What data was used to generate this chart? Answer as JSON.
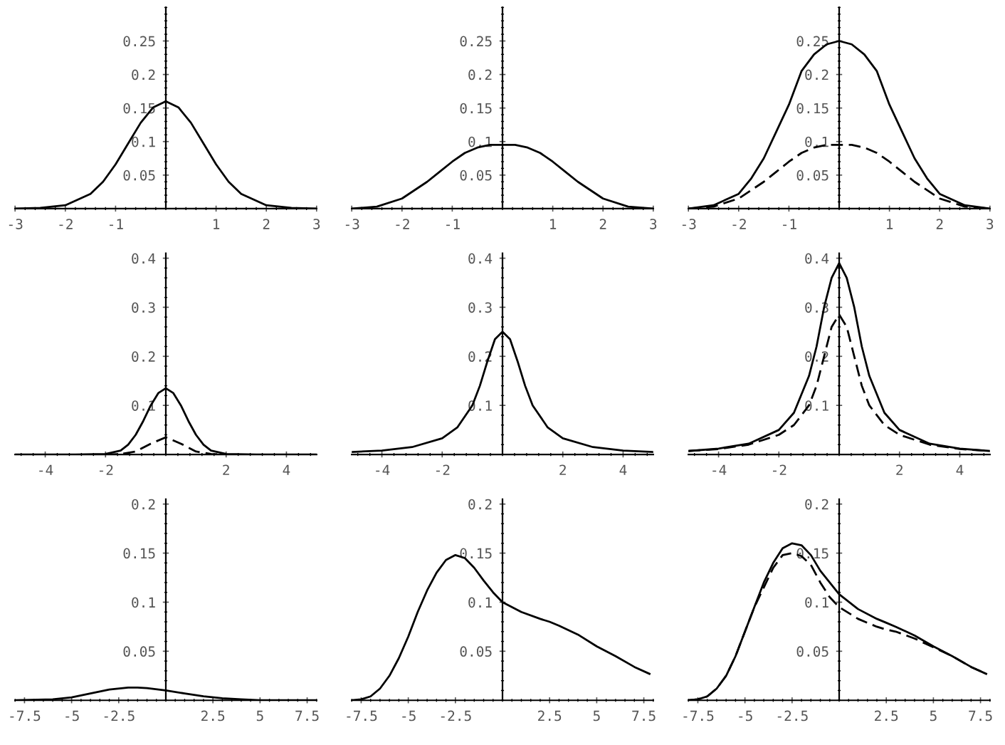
{
  "chart_data": [
    {
      "type": "line",
      "xlim": [
        -3,
        3
      ],
      "ylim": [
        0,
        0.3
      ],
      "xticks": [
        -3,
        -2,
        -1,
        1,
        2,
        3
      ],
      "yticks": [
        0.05,
        0.1,
        0.15,
        0.2,
        0.25
      ],
      "series": [
        {
          "color": "#000000",
          "line_style": "solid",
          "x": [
            -3,
            -2.5,
            -2,
            -1.5,
            -1.25,
            -1,
            -0.75,
            -0.5,
            -0.25,
            0,
            0.25,
            0.5,
            0.75,
            1,
            1.25,
            1.5,
            2,
            2.5,
            3
          ],
          "values": [
            0.0,
            0.001,
            0.005,
            0.022,
            0.04,
            0.066,
            0.097,
            0.128,
            0.151,
            0.16,
            0.151,
            0.128,
            0.097,
            0.066,
            0.04,
            0.022,
            0.005,
            0.001,
            0.0
          ]
        }
      ]
    },
    {
      "type": "line",
      "xlim": [
        -3,
        3
      ],
      "ylim": [
        0,
        0.3
      ],
      "xticks": [
        -3,
        -2,
        -1,
        1,
        2,
        3
      ],
      "yticks": [
        0.05,
        0.1,
        0.15,
        0.2,
        0.25
      ],
      "series": [
        {
          "color": "#000000",
          "line_style": "solid",
          "x": [
            -3,
            -2.5,
            -2,
            -1.5,
            -1.25,
            -1,
            -0.75,
            -0.5,
            -0.25,
            0,
            0.25,
            0.5,
            0.75,
            1,
            1.25,
            1.5,
            2,
            2.5,
            3
          ],
          "values": [
            0.0,
            0.003,
            0.015,
            0.04,
            0.055,
            0.07,
            0.083,
            0.091,
            0.095,
            0.095,
            0.095,
            0.091,
            0.083,
            0.07,
            0.055,
            0.04,
            0.015,
            0.003,
            0.0
          ]
        }
      ]
    },
    {
      "type": "line",
      "xlim": [
        -3,
        3
      ],
      "ylim": [
        0,
        0.3
      ],
      "xticks": [
        -3,
        -2,
        -1,
        1,
        2,
        3
      ],
      "yticks": [
        0.05,
        0.1,
        0.15,
        0.2,
        0.25
      ],
      "series": [
        {
          "color": "#000000",
          "line_style": "solid",
          "x": [
            -3,
            -2.5,
            -2,
            -1.75,
            -1.5,
            -1.25,
            -1,
            -0.75,
            -0.5,
            -0.25,
            0,
            0.25,
            0.5,
            0.75,
            1,
            1.25,
            1.5,
            1.75,
            2,
            2.5,
            3
          ],
          "values": [
            0.0,
            0.005,
            0.022,
            0.045,
            0.075,
            0.115,
            0.155,
            0.205,
            0.23,
            0.245,
            0.25,
            0.245,
            0.23,
            0.205,
            0.155,
            0.115,
            0.075,
            0.045,
            0.022,
            0.005,
            0.0
          ]
        },
        {
          "color": "#000000",
          "line_style": "dashed",
          "x": [
            -3,
            -2.5,
            -2,
            -1.5,
            -1.25,
            -1,
            -0.75,
            -0.5,
            -0.25,
            0,
            0.25,
            0.5,
            0.75,
            1,
            1.25,
            1.5,
            2,
            2.5,
            3
          ],
          "values": [
            0.0,
            0.003,
            0.015,
            0.04,
            0.055,
            0.07,
            0.083,
            0.091,
            0.095,
            0.095,
            0.095,
            0.091,
            0.083,
            0.07,
            0.055,
            0.04,
            0.015,
            0.003,
            0.0
          ]
        }
      ]
    },
    {
      "type": "line",
      "xlim": [
        -5,
        5
      ],
      "ylim": [
        0,
        0.41
      ],
      "xticks": [
        -4,
        -2,
        2,
        4
      ],
      "yticks": [
        0.1,
        0.2,
        0.3,
        0.4
      ],
      "series": [
        {
          "color": "#000000",
          "line_style": "solid",
          "x": [
            -5,
            -3,
            -2,
            -1.5,
            -1.25,
            -1,
            -0.75,
            -0.5,
            -0.25,
            0,
            0.25,
            0.5,
            0.75,
            1,
            1.25,
            1.5,
            2,
            3,
            5
          ],
          "values": [
            0.0,
            0.0,
            0.001,
            0.008,
            0.02,
            0.04,
            0.068,
            0.1,
            0.125,
            0.135,
            0.125,
            0.1,
            0.068,
            0.04,
            0.02,
            0.008,
            0.001,
            0.0,
            0.0
          ]
        },
        {
          "color": "#000000",
          "line_style": "dashed",
          "x": [
            -2,
            -1.5,
            -1,
            -0.5,
            0,
            0.5,
            1,
            1.5,
            2
          ],
          "values": [
            0.0,
            0.001,
            0.006,
            0.022,
            0.035,
            0.022,
            0.006,
            0.001,
            0.0
          ]
        }
      ]
    },
    {
      "type": "line",
      "xlim": [
        -5,
        5
      ],
      "ylim": [
        0,
        0.41
      ],
      "xticks": [
        -4,
        -2,
        2,
        4
      ],
      "yticks": [
        0.1,
        0.2,
        0.3,
        0.4
      ],
      "series": [
        {
          "color": "#000000",
          "line_style": "solid",
          "x": [
            -5,
            -4,
            -3,
            -2,
            -1.5,
            -1,
            -0.75,
            -0.5,
            -0.25,
            0,
            0.25,
            0.5,
            0.75,
            1,
            1.5,
            2,
            3,
            4,
            5
          ],
          "values": [
            0.005,
            0.008,
            0.015,
            0.033,
            0.055,
            0.1,
            0.14,
            0.19,
            0.235,
            0.25,
            0.235,
            0.19,
            0.14,
            0.1,
            0.055,
            0.033,
            0.015,
            0.008,
            0.005
          ]
        }
      ]
    },
    {
      "type": "line",
      "xlim": [
        -5,
        5
      ],
      "ylim": [
        0,
        0.41
      ],
      "xticks": [
        -4,
        -2,
        2,
        4
      ],
      "yticks": [
        0.1,
        0.2,
        0.3,
        0.4
      ],
      "series": [
        {
          "color": "#000000",
          "line_style": "solid",
          "x": [
            -5,
            -4,
            -3,
            -2,
            -1.5,
            -1,
            -0.75,
            -0.5,
            -0.25,
            0,
            0.25,
            0.5,
            0.75,
            1,
            1.5,
            2,
            3,
            4,
            5
          ],
          "values": [
            0.007,
            0.012,
            0.022,
            0.05,
            0.085,
            0.16,
            0.22,
            0.3,
            0.36,
            0.39,
            0.36,
            0.3,
            0.22,
            0.16,
            0.085,
            0.05,
            0.022,
            0.012,
            0.007
          ]
        },
        {
          "color": "#000000",
          "line_style": "dashed",
          "x": [
            -5,
            -4,
            -3,
            -2,
            -1.5,
            -1,
            -0.75,
            -0.5,
            -0.25,
            0,
            0.25,
            0.5,
            0.75,
            1,
            1.5,
            2,
            3,
            4,
            5
          ],
          "values": [
            0.007,
            0.011,
            0.02,
            0.04,
            0.06,
            0.1,
            0.14,
            0.2,
            0.26,
            0.285,
            0.26,
            0.2,
            0.14,
            0.1,
            0.06,
            0.04,
            0.02,
            0.011,
            0.007
          ]
        }
      ]
    },
    {
      "type": "line",
      "xlim": [
        -8,
        8
      ],
      "ylim": [
        0,
        0.205
      ],
      "xticks": [
        -7.5,
        -5,
        -2.5,
        2.5,
        5,
        7.5
      ],
      "yticks": [
        0.05,
        0.1,
        0.15,
        0.2
      ],
      "series": [
        {
          "color": "#000000",
          "line_style": "solid",
          "x": [
            -8,
            -6,
            -5,
            -4,
            -3,
            -2,
            -1.5,
            -1,
            0,
            1,
            2,
            3,
            4,
            5,
            8
          ],
          "values": [
            0.0,
            0.001,
            0.003,
            0.007,
            0.011,
            0.013,
            0.013,
            0.0125,
            0.01,
            0.007,
            0.004,
            0.002,
            0.001,
            0.0,
            0.0
          ]
        }
      ]
    },
    {
      "type": "line",
      "xlim": [
        -8,
        8
      ],
      "ylim": [
        0,
        0.205
      ],
      "xticks": [
        -7.5,
        -5,
        -2.5,
        2.5,
        5,
        7.5
      ],
      "yticks": [
        0.05,
        0.1,
        0.15,
        0.2
      ],
      "series": [
        {
          "color": "#000000",
          "line_style": "solid",
          "x": [
            -8,
            -7.5,
            -7,
            -6.5,
            -6,
            -5.5,
            -5,
            -4.5,
            -4,
            -3.5,
            -3,
            -2.5,
            -2,
            -1.5,
            -1,
            -0.5,
            0,
            1,
            2,
            2.5,
            3,
            4,
            5,
            6,
            7,
            7.8
          ],
          "values": [
            0.0,
            0.001,
            0.004,
            0.012,
            0.025,
            0.043,
            0.065,
            0.09,
            0.112,
            0.13,
            0.143,
            0.148,
            0.145,
            0.135,
            0.122,
            0.11,
            0.1,
            0.09,
            0.083,
            0.08,
            0.076,
            0.067,
            0.055,
            0.045,
            0.034,
            0.027
          ]
        }
      ]
    },
    {
      "type": "line",
      "xlim": [
        -8,
        8
      ],
      "ylim": [
        0,
        0.205
      ],
      "xticks": [
        -7.5,
        -5,
        -2.5,
        2.5,
        5,
        7.5
      ],
      "yticks": [
        0.05,
        0.1,
        0.15,
        0.2
      ],
      "series": [
        {
          "color": "#000000",
          "line_style": "solid",
          "x": [
            -8,
            -7.5,
            -7,
            -6.5,
            -6,
            -5.5,
            -5,
            -4.5,
            -4,
            -3.5,
            -3,
            -2.5,
            -2,
            -1.5,
            -1,
            -0.5,
            0,
            1,
            2,
            2.5,
            3,
            4,
            5,
            6,
            7,
            7.8
          ],
          "values": [
            0.0,
            0.001,
            0.004,
            0.012,
            0.025,
            0.045,
            0.07,
            0.095,
            0.12,
            0.14,
            0.155,
            0.16,
            0.158,
            0.148,
            0.132,
            0.12,
            0.108,
            0.093,
            0.083,
            0.079,
            0.075,
            0.066,
            0.055,
            0.045,
            0.034,
            0.027
          ]
        },
        {
          "color": "#000000",
          "line_style": "dashed",
          "x": [
            -8,
            -7.5,
            -7,
            -6.5,
            -6,
            -5.5,
            -5,
            -4.5,
            -4,
            -3.5,
            -3,
            -2.5,
            -2,
            -1.5,
            -1,
            -0.5,
            0,
            1,
            2,
            2.5,
            3,
            4,
            5,
            6,
            7,
            7.8
          ],
          "values": [
            0.0,
            0.001,
            0.004,
            0.012,
            0.025,
            0.045,
            0.07,
            0.095,
            0.115,
            0.135,
            0.148,
            0.15,
            0.147,
            0.138,
            0.12,
            0.105,
            0.095,
            0.083,
            0.075,
            0.072,
            0.07,
            0.063,
            0.054,
            0.045,
            0.034,
            0.027
          ]
        }
      ]
    }
  ]
}
